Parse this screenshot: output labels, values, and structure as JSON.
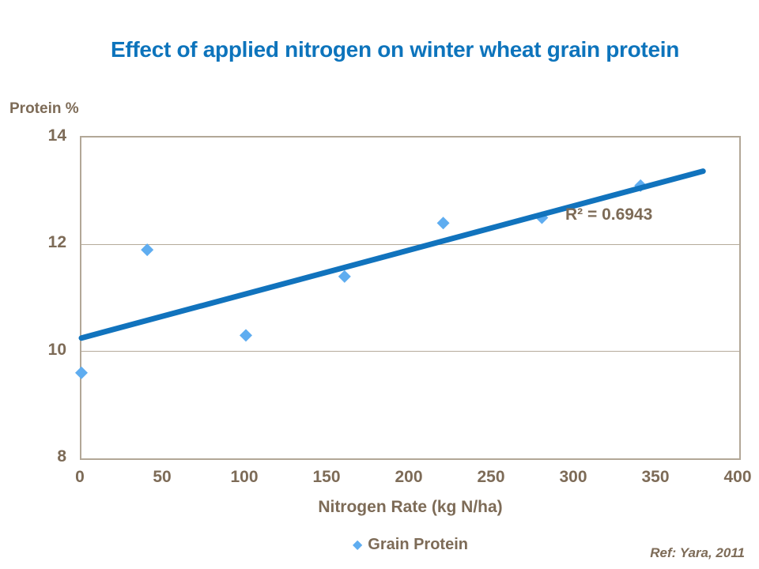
{
  "header": {
    "title": "Effect of applied nitrogen on winter wheat grain protein"
  },
  "footer": {
    "reference": "Ref: Yara, 2011"
  },
  "legend": {
    "label": "Grain Protein",
    "marker_icon": "diamond-icon"
  },
  "colors": {
    "title_blue": "#0d74bc",
    "marker_blue": "#5fadf0",
    "trendline_blue": "#1173bd",
    "axis_text_brown": "#7d6b57",
    "grid_brown": "#b5aa9a",
    "border_brown": "#b2a797"
  },
  "chart_data": {
    "type": "scatter",
    "title": "Effect of applied nitrogen on winter wheat grain protein",
    "xlabel": "Nitrogen Rate (kg N/ha)",
    "ylabel": "Protein %",
    "xlim": [
      0,
      400
    ],
    "ylim": [
      8,
      14
    ],
    "x_ticks": [
      0,
      50,
      100,
      150,
      200,
      250,
      300,
      350,
      400
    ],
    "y_ticks": [
      14,
      12,
      10,
      8
    ],
    "gridlines_y": [
      10,
      12
    ],
    "legend_position": "bottom-center",
    "series": [
      {
        "name": "Grain Protein",
        "marker": "diamond",
        "points": [
          {
            "x": 0,
            "y": 9.6
          },
          {
            "x": 40,
            "y": 11.9
          },
          {
            "x": 100,
            "y": 10.3
          },
          {
            "x": 160,
            "y": 11.4
          },
          {
            "x": 220,
            "y": 12.4
          },
          {
            "x": 280,
            "y": 12.5
          },
          {
            "x": 340,
            "y": 13.1
          }
        ]
      }
    ],
    "trendline": {
      "x1": 0,
      "y1": 10.25,
      "x2": 378,
      "y2": 13.37,
      "r_squared": 0.6943
    },
    "annotation": "R² = 0.6943"
  }
}
